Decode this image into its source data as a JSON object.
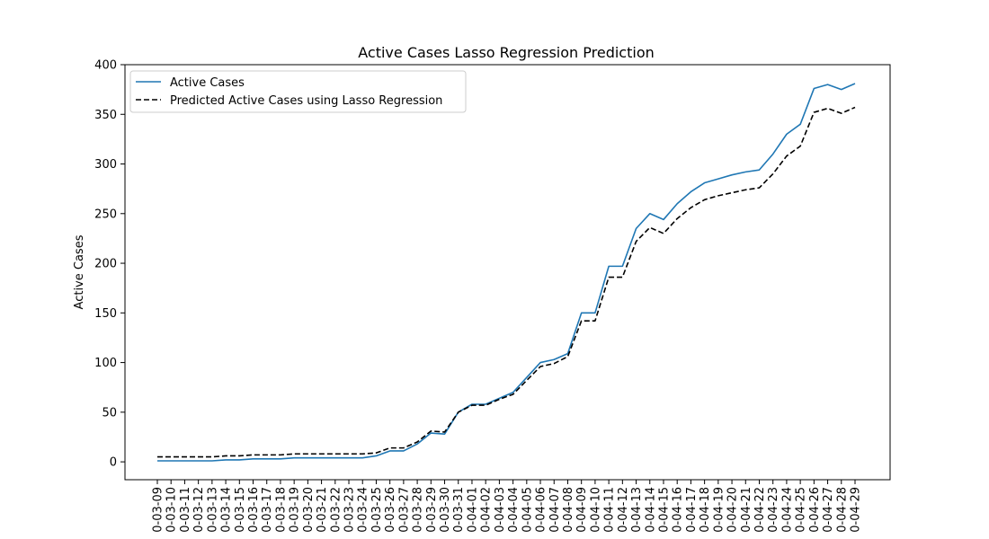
{
  "chart_data": {
    "type": "line",
    "title": "Active Cases Lasso Regression Prediction",
    "xlabel": "",
    "ylabel": "Active Cases",
    "ylim": [
      -18,
      400
    ],
    "yticks": [
      0,
      50,
      100,
      150,
      200,
      250,
      300,
      350,
      400
    ],
    "legend_position": "top-left",
    "grid": false,
    "categories": [
      "0-03-09",
      "0-03-10",
      "0-03-11",
      "0-03-12",
      "0-03-13",
      "0-03-14",
      "0-03-15",
      "0-03-16",
      "0-03-17",
      "0-03-18",
      "0-03-19",
      "0-03-20",
      "0-03-21",
      "0-03-22",
      "0-03-23",
      "0-03-24",
      "0-03-25",
      "0-03-26",
      "0-03-27",
      "0-03-28",
      "0-03-29",
      "0-03-30",
      "0-03-31",
      "0-04-01",
      "0-04-02",
      "0-04-03",
      "0-04-04",
      "0-04-05",
      "0-04-06",
      "0-04-07",
      "0-04-08",
      "0-04-09",
      "0-04-10",
      "0-04-11",
      "0-04-12",
      "0-04-13",
      "0-04-14",
      "0-04-15",
      "0-04-16",
      "0-04-17",
      "0-04-18",
      "0-04-19",
      "0-04-20",
      "0-04-21",
      "0-04-22",
      "0-04-23",
      "0-04-24",
      "0-04-25",
      "0-04-26",
      "0-04-27",
      "0-04-28",
      "0-04-29"
    ],
    "series": [
      {
        "name": "Active Cases",
        "color": "#1f77b4",
        "style": "solid",
        "values": [
          1,
          1,
          1,
          1,
          1,
          2,
          2,
          3,
          3,
          3,
          4,
          4,
          4,
          4,
          4,
          4,
          6,
          11,
          11,
          18,
          29,
          28,
          50,
          58,
          58,
          64,
          70,
          85,
          100,
          103,
          109,
          150,
          150,
          197,
          197,
          235,
          250,
          244,
          260,
          272,
          281,
          285,
          289,
          292,
          294,
          310,
          330,
          340,
          376,
          380,
          375,
          381
        ]
      },
      {
        "name": "Predicted Active Cases using Lasso Regression",
        "color": "#000000",
        "style": "dashed",
        "values": [
          5,
          5,
          5,
          5,
          5,
          6,
          6,
          7,
          7,
          7,
          8,
          8,
          8,
          8,
          8,
          8,
          9,
          14,
          14,
          20,
          31,
          30,
          50,
          57,
          57,
          63,
          68,
          82,
          96,
          99,
          106,
          142,
          142,
          186,
          186,
          222,
          236,
          230,
          245,
          256,
          264,
          268,
          271,
          274,
          276,
          290,
          308,
          318,
          352,
          356,
          351,
          357
        ]
      }
    ]
  }
}
